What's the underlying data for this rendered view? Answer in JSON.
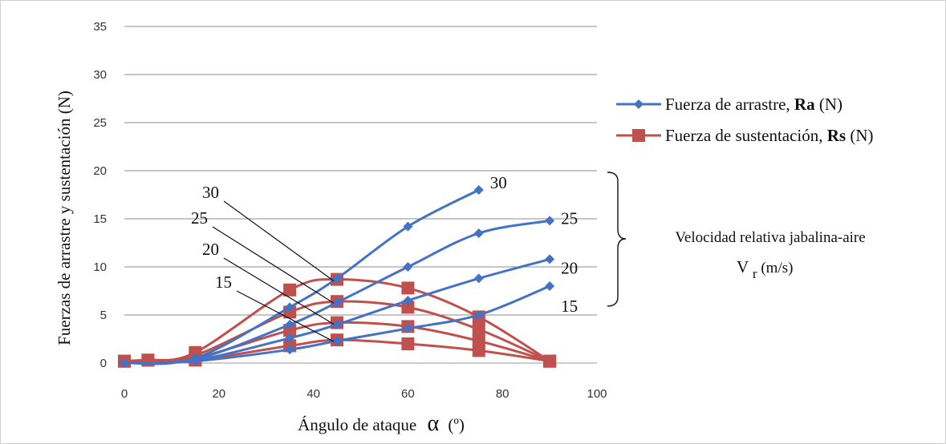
{
  "chart_data": {
    "type": "line",
    "xlabel_text": "Ángulo de ataque",
    "xlabel_alpha": "α",
    "xlabel_unit": "(º)",
    "ylabel": "Fuerzas de arrastre y sustentación (N)",
    "xlim": [
      0,
      100
    ],
    "ylim": [
      0,
      35
    ],
    "xticks": [
      0,
      20,
      40,
      60,
      80,
      100
    ],
    "yticks": [
      0,
      5,
      10,
      15,
      20,
      25,
      30,
      35
    ],
    "grid": "horizontal",
    "legend_position": "right",
    "legend": [
      {
        "text": "Fuerza de arrastre,",
        "bold": "Ra",
        "unit": "(N)",
        "marker": "diamond",
        "color": "#4472C4"
      },
      {
        "text": "Fuerza de sustentación,",
        "bold": "Rs",
        "unit": "(N)",
        "marker": "square",
        "color": "#C0504D"
      }
    ],
    "colors": {
      "drag": "#4472C4",
      "lift": "#C0504D"
    },
    "drag_series": [
      {
        "velocity": "30",
        "x": [
          0,
          15,
          35,
          45,
          60,
          75
        ],
        "y": [
          0,
          0.5,
          5.8,
          8.8,
          14.2,
          18
        ]
      },
      {
        "velocity": "25",
        "x": [
          0,
          15,
          35,
          45,
          60,
          75,
          90
        ],
        "y": [
          0,
          0.4,
          4,
          6.3,
          10,
          13.5,
          14.8
        ]
      },
      {
        "velocity": "20",
        "x": [
          0,
          15,
          35,
          45,
          60,
          75,
          90
        ],
        "y": [
          0,
          0.3,
          2.6,
          4,
          6.5,
          8.8,
          10.8
        ]
      },
      {
        "velocity": "15",
        "x": [
          0,
          15,
          35,
          45,
          60,
          75,
          90
        ],
        "y": [
          0,
          0.2,
          1.4,
          2.3,
          3.6,
          5,
          8
        ]
      }
    ],
    "lift_series": [
      {
        "velocity": "30",
        "x": [
          0,
          5,
          15,
          35,
          45,
          60,
          75,
          90
        ],
        "y": [
          0.2,
          0.3,
          1.1,
          7.6,
          8.7,
          7.8,
          4.8,
          0.2
        ]
      },
      {
        "velocity": "25",
        "x": [
          0,
          5,
          15,
          35,
          45,
          60,
          75,
          90
        ],
        "y": [
          0.2,
          0.3,
          0.8,
          5.3,
          6.4,
          5.8,
          3.5,
          0.2
        ]
      },
      {
        "velocity": "20",
        "x": [
          0,
          5,
          15,
          35,
          45,
          60,
          75,
          90
        ],
        "y": [
          0.2,
          0.3,
          0.5,
          3.4,
          4.2,
          3.8,
          2.3,
          0.2
        ]
      },
      {
        "velocity": "15",
        "x": [
          0,
          5,
          15,
          35,
          45,
          60,
          75,
          90
        ],
        "y": [
          0.2,
          0.3,
          0.3,
          1.8,
          2.4,
          2,
          1.3,
          0.2
        ]
      }
    ],
    "annotations": {
      "velocity_label": "Velocidad relativa jabalina-aire",
      "velocity_symbol": "V",
      "velocity_subscript": "r",
      "velocity_unit": "(m/s)",
      "drag_end_labels": [
        "30",
        "25",
        "20",
        "15"
      ],
      "lift_callouts": [
        "30",
        "25",
        "20",
        "15"
      ]
    }
  }
}
